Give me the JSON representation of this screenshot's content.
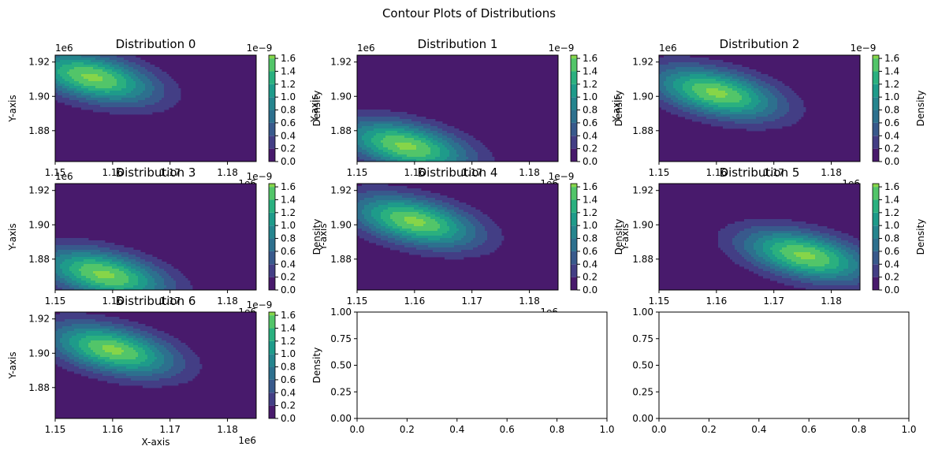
{
  "figure": {
    "suptitle": "Contour Plots of Distributions"
  },
  "colormap": {
    "name": "viridis",
    "levels": [
      {
        "min": 0.0,
        "max": 0.2,
        "color": "#481a6c"
      },
      {
        "min": 0.2,
        "max": 0.4,
        "color": "#433e85"
      },
      {
        "min": 0.4,
        "max": 0.6,
        "color": "#38598c"
      },
      {
        "min": 0.6,
        "max": 0.8,
        "color": "#2d708e"
      },
      {
        "min": 0.8,
        "max": 1.0,
        "color": "#25858e"
      },
      {
        "min": 1.0,
        "max": 1.2,
        "color": "#1e9b8a"
      },
      {
        "min": 1.2,
        "max": 1.4,
        "color": "#2ab07f"
      },
      {
        "min": 1.4,
        "max": 1.6,
        "color": "#52c569"
      },
      {
        "min": 1.6,
        "max": 1.8,
        "color": "#86d549"
      },
      {
        "min": 1.8,
        "max": 2.0,
        "color": "#c2df23"
      }
    ]
  },
  "chart_data": [
    {
      "type": "contourf",
      "title": "Distribution 0",
      "xlabel": "",
      "ylabel": "Y-axis",
      "xlim": [
        1.15,
        1.185
      ],
      "ylim": [
        1.862,
        1.924
      ],
      "xticks": [
        "1.15",
        "1.16",
        "1.17",
        "1.18"
      ],
      "x_offset": "1e6",
      "yticks": [
        "1.88",
        "1.90",
        "1.92"
      ],
      "y_offset": "1e6",
      "center": [
        1.1565,
        1.911
      ],
      "sigma_x": 0.0075,
      "sigma_y": 0.0105,
      "rho": -0.45,
      "colorbar": {
        "label": "Density",
        "ticks": [
          "0.0",
          "0.2",
          "0.4",
          "0.6",
          "0.8",
          "1.0",
          "1.2",
          "1.4",
          "1.6"
        ],
        "offset": "1e−9",
        "extra_label": ""
      }
    },
    {
      "type": "contourf",
      "title": "Distribution 1",
      "xlabel": "",
      "ylabel": "Y-axis",
      "xlim": [
        1.15,
        1.185
      ],
      "ylim": [
        1.862,
        1.924
      ],
      "xticks": [
        "1.15",
        "1.16",
        "1.17",
        "1.18"
      ],
      "x_offset": "1e6",
      "yticks": [
        "1.88",
        "1.90",
        "1.92"
      ],
      "y_offset": "1e6",
      "center": [
        1.1585,
        1.871
      ],
      "sigma_x": 0.0075,
      "sigma_y": 0.0105,
      "rho": -0.45,
      "colorbar": {
        "label": "Density",
        "ticks": [
          "0.0",
          "0.2",
          "0.4",
          "0.6",
          "0.8",
          "1.0",
          "1.2",
          "1.4",
          "1.6"
        ],
        "offset": "1e−9",
        "extra_label": ""
      }
    },
    {
      "type": "contourf",
      "title": "Distribution 2",
      "xlabel": "",
      "ylabel": "Y-axis",
      "xlim": [
        1.15,
        1.185
      ],
      "ylim": [
        1.862,
        1.924
      ],
      "xticks": [
        "1.15",
        "1.16",
        "1.17",
        "1.18"
      ],
      "x_offset": "1e6",
      "yticks": [
        "1.88",
        "1.90",
        "1.92"
      ],
      "y_offset": "1e6",
      "center": [
        1.16,
        1.902
      ],
      "sigma_x": 0.0075,
      "sigma_y": 0.0105,
      "rho": -0.45,
      "colorbar": {
        "label": "Density",
        "ticks": [
          "0.0",
          "0.2",
          "0.4",
          "0.6",
          "0.8",
          "1.0",
          "1.2",
          "1.4",
          "1.6"
        ],
        "offset": "1e−9",
        "extra_label": ""
      }
    },
    {
      "type": "contourf",
      "title": "Distribution 3",
      "xlabel": "",
      "ylabel": "Y-axis",
      "xlim": [
        1.15,
        1.185
      ],
      "ylim": [
        1.862,
        1.924
      ],
      "xticks": [
        "1.15",
        "1.16",
        "1.17",
        "1.18"
      ],
      "x_offset": "1e6",
      "yticks": [
        "1.88",
        "1.90",
        "1.92"
      ],
      "y_offset": "1e6",
      "center": [
        1.1585,
        1.871
      ],
      "sigma_x": 0.0075,
      "sigma_y": 0.0105,
      "rho": -0.45,
      "colorbar": {
        "label": "Density",
        "ticks": [
          "0.0",
          "0.2",
          "0.4",
          "0.6",
          "0.8",
          "1.0",
          "1.2",
          "1.4",
          "1.6"
        ],
        "offset": "1e−9",
        "extra_label": "Y-axis"
      }
    },
    {
      "type": "contourf",
      "title": "Distribution 4",
      "xlabel": "",
      "ylabel": "",
      "xlim": [
        1.15,
        1.185
      ],
      "ylim": [
        1.862,
        1.924
      ],
      "xticks": [
        "1.15",
        "1.16",
        "1.17",
        "1.18"
      ],
      "x_offset": "1e6",
      "yticks": [
        "1.88",
        "1.90",
        "1.92"
      ],
      "y_offset": "",
      "center": [
        1.16,
        1.902
      ],
      "sigma_x": 0.0075,
      "sigma_y": 0.0105,
      "rho": -0.45,
      "colorbar": {
        "label": "Density",
        "ticks": [
          "0.0",
          "0.2",
          "0.4",
          "0.6",
          "0.8",
          "1.0",
          "1.2",
          "1.4",
          "1.6"
        ],
        "offset": "1e−9",
        "extra_label": "Y-axis"
      }
    },
    {
      "type": "contourf",
      "title": "Distribution 5",
      "xlabel": "",
      "ylabel": "",
      "xlim": [
        1.15,
        1.185
      ],
      "ylim": [
        1.862,
        1.924
      ],
      "xticks": [
        "1.15",
        "1.16",
        "1.17",
        "1.18"
      ],
      "x_offset": "",
      "yticks": [
        "1.88",
        "1.90",
        "1.92"
      ],
      "y_offset": "",
      "center": [
        1.1755,
        1.882
      ],
      "sigma_x": 0.0075,
      "sigma_y": 0.0105,
      "rho": -0.45,
      "colorbar": {
        "label": "Density",
        "ticks": [
          "0.0",
          "0.2",
          "0.4",
          "0.6",
          "0.8",
          "1.0",
          "1.2",
          "1.4",
          "1.6"
        ],
        "offset": "",
        "extra_label": ""
      }
    },
    {
      "type": "contourf",
      "title": "Distribution 6",
      "xlabel": "X-axis",
      "ylabel": "Y-axis",
      "xlim": [
        1.15,
        1.185
      ],
      "ylim": [
        1.862,
        1.924
      ],
      "xticks": [
        "1.15",
        "1.16",
        "1.17",
        "1.18"
      ],
      "x_offset": "1e6",
      "yticks": [
        "1.88",
        "1.90",
        "1.92"
      ],
      "y_offset": "",
      "center": [
        1.16,
        1.902
      ],
      "sigma_x": 0.0075,
      "sigma_y": 0.0105,
      "rho": -0.45,
      "colorbar": {
        "label": "Density",
        "ticks": [
          "0.0",
          "0.2",
          "0.4",
          "0.6",
          "0.8",
          "1.0",
          "1.2",
          "1.4",
          "1.6"
        ],
        "offset": "1e−9",
        "extra_label": ""
      }
    },
    {
      "type": "empty",
      "title": "",
      "xlim": [
        0,
        1
      ],
      "ylim": [
        0,
        1
      ],
      "xticks": [
        "0.0",
        "0.2",
        "0.4",
        "0.6",
        "0.8",
        "1.0"
      ],
      "yticks": [
        "0.00",
        "0.25",
        "0.50",
        "0.75",
        "1.00"
      ]
    },
    {
      "type": "empty",
      "title": "",
      "xlim": [
        0,
        1
      ],
      "ylim": [
        0,
        1
      ],
      "xticks": [
        "0.0",
        "0.2",
        "0.4",
        "0.6",
        "0.8",
        "1.0"
      ],
      "yticks": [
        "0.00",
        "0.25",
        "0.50",
        "0.75",
        "1.00"
      ]
    }
  ]
}
